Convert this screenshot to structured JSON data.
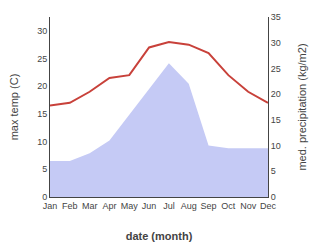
{
  "chart_data": {
    "type": "line",
    "xlabel": "date (month)",
    "ylabel": "max temp (C)",
    "y2label": "med. precipitation (kg/m2)",
    "categories": [
      "Jan",
      "Feb",
      "Mar",
      "Apr",
      "May",
      "Jun",
      "Jul",
      "Aug",
      "Sep",
      "Oct",
      "Nov",
      "Dec"
    ],
    "series": [
      {
        "type": "area",
        "axis": "y2",
        "color": "#c5caf5",
        "values": [
          7.0,
          7.0,
          8.5,
          11.0,
          16.0,
          21.0,
          26.0,
          22.0,
          10.0,
          9.5,
          9.5,
          9.5
        ]
      },
      {
        "type": "line",
        "color": "#c8413a",
        "values": [
          16.5,
          17.0,
          19.0,
          21.5,
          22.0,
          27.0,
          28.0,
          27.5,
          26.0,
          22.0,
          19.0,
          17.0
        ]
      }
    ],
    "ylim": [
      0,
      32.5
    ],
    "yticks": [
      0,
      5,
      10,
      15,
      20,
      25,
      30
    ],
    "y2lim": [
      0,
      35
    ],
    "y2ticks": [
      0,
      5,
      10,
      15,
      20,
      25,
      30,
      35
    ],
    "grid": false
  }
}
